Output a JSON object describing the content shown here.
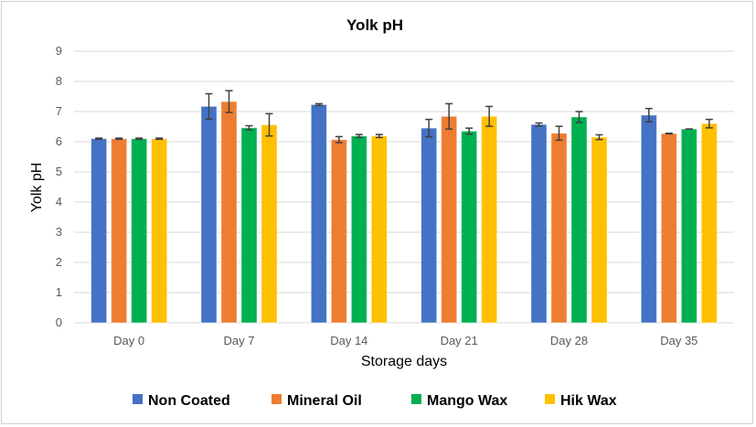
{
  "chart_data": {
    "type": "bar",
    "title": "Yolk pH",
    "xlabel": "Storage days",
    "ylabel": "Yolk pH",
    "ylim": [
      0,
      9
    ],
    "yticks": [
      "0",
      "1",
      "2",
      "3",
      "4",
      "5",
      "6",
      "7",
      "8",
      "9"
    ],
    "grid": true,
    "legend_position": "bottom",
    "categories": [
      "Day 0",
      "Day 7",
      "Day 14",
      "Day 21",
      "Day 28",
      "Day 35"
    ],
    "series": [
      {
        "name": "Non Coated",
        "color": "#4472C4",
        "values": [
          6.1,
          7.17,
          7.23,
          6.45,
          6.57,
          6.88
        ],
        "errors": [
          0.02,
          0.42,
          0.03,
          0.29,
          0.05,
          0.22
        ]
      },
      {
        "name": "Mineral Oil",
        "color": "#ED7D31",
        "values": [
          6.1,
          7.33,
          6.07,
          6.84,
          6.28,
          6.27
        ],
        "errors": [
          0.02,
          0.36,
          0.1,
          0.42,
          0.23,
          0.01
        ]
      },
      {
        "name": "Mango Wax",
        "color": "#00B050",
        "values": [
          6.1,
          6.46,
          6.19,
          6.35,
          6.82,
          6.42
        ],
        "errors": [
          0.02,
          0.07,
          0.05,
          0.1,
          0.18,
          0.0
        ]
      },
      {
        "name": "Hik Wax",
        "color": "#FFC000",
        "values": [
          6.1,
          6.56,
          6.19,
          6.84,
          6.15,
          6.6
        ],
        "errors": [
          0.02,
          0.37,
          0.05,
          0.33,
          0.08,
          0.14
        ]
      }
    ]
  }
}
